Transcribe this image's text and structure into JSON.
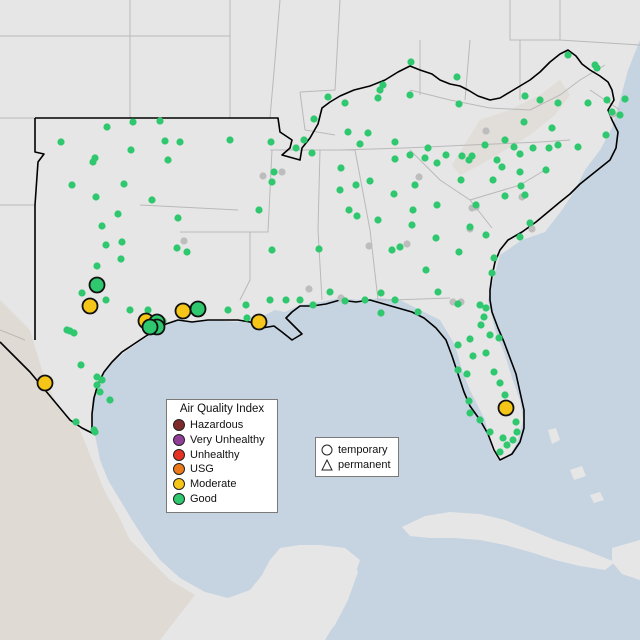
{
  "colors": {
    "water": "#c6d4e1",
    "land": "#e6e6e6",
    "terrain": "#d8d3ca",
    "state_border": "#b9b9b9",
    "region_outline": "#000000",
    "unmonitored": "#bdbdbd"
  },
  "aqi_legend": {
    "title": "Air Quality Index",
    "categories": [
      {
        "label": "Hazardous",
        "color": "#7e2a2a"
      },
      {
        "label": "Very Unhealthy",
        "color": "#8f3f97"
      },
      {
        "label": "Unhealthy",
        "color": "#e53222"
      },
      {
        "label": "USG",
        "color": "#ec7a1a"
      },
      {
        "label": "Moderate",
        "color": "#f5c518"
      },
      {
        "label": "Good",
        "color": "#2fc86e"
      }
    ]
  },
  "type_legend": {
    "items": [
      {
        "label": "temporary",
        "shape": "circle"
      },
      {
        "label": "permanent",
        "shape": "triangle"
      }
    ]
  }
}
